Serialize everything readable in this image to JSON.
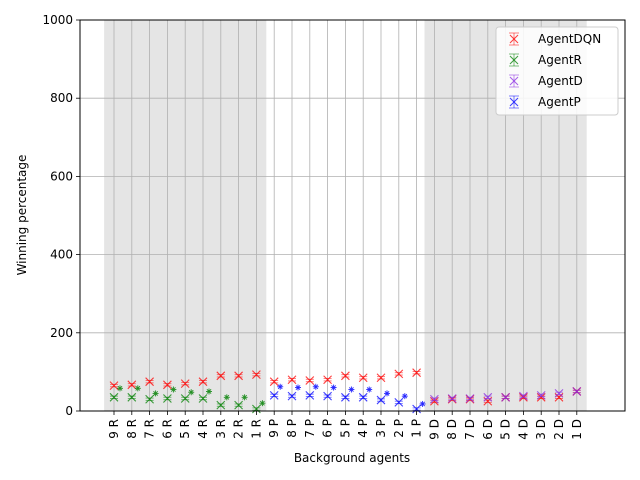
{
  "chart_data": {
    "type": "scatter",
    "xlabel": "Background agents",
    "ylabel": "Winning percentage",
    "ylim": [
      0,
      1000
    ],
    "yticks": [
      0,
      200,
      400,
      600,
      800,
      1000
    ],
    "grid": true,
    "legend_position": "top-right",
    "categories": [
      "9 R",
      "8 R",
      "7 R",
      "6 R",
      "5 R",
      "4 R",
      "3 R",
      "2 R",
      "1 R",
      "9 P",
      "8 P",
      "7 P",
      "6 P",
      "5 P",
      "4 P",
      "3 P",
      "2 P",
      "1 P",
      "9 D",
      "8 D",
      "7 D",
      "6 D",
      "5 D",
      "4 D",
      "3 D",
      "2 D",
      "1 D"
    ],
    "shaded_ranges": [
      {
        "from": "9 R",
        "to": "1 R"
      },
      {
        "from": "9 D",
        "to": "1 D"
      }
    ],
    "series": [
      {
        "name": "AgentDQN",
        "color": "#ff0000",
        "values": [
          65,
          67,
          75,
          67,
          70,
          75,
          90,
          90,
          93,
          75,
          80,
          78,
          80,
          90,
          85,
          85,
          95,
          98,
          25,
          30,
          30,
          25,
          35,
          35,
          35,
          35,
          50
        ],
        "error": [
          3,
          3,
          3,
          3,
          3,
          3,
          3,
          3,
          3,
          3,
          3,
          3,
          3,
          3,
          3,
          3,
          3,
          3,
          3,
          3,
          3,
          3,
          3,
          3,
          3,
          3,
          3
        ]
      },
      {
        "name": "AgentR",
        "color": "#008000",
        "values": [
          35,
          35,
          30,
          32,
          32,
          32,
          15,
          15,
          5,
          null,
          null,
          null,
          null,
          null,
          null,
          null,
          null,
          null,
          null,
          null,
          null,
          null,
          null,
          null,
          null,
          null,
          null
        ],
        "error": [
          3,
          3,
          3,
          3,
          3,
          3,
          3,
          3,
          3,
          null,
          null,
          null,
          null,
          null,
          null,
          null,
          null,
          null,
          null,
          null,
          null,
          null,
          null,
          null,
          null,
          null,
          null
        ],
        "secondary": [
          58,
          58,
          45,
          55,
          48,
          50,
          35,
          35,
          20,
          null,
          null,
          null,
          null,
          null,
          null,
          null,
          null,
          null,
          null,
          null,
          null,
          null,
          null,
          null,
          null,
          null,
          null
        ]
      },
      {
        "name": "AgentD",
        "color": "#8a2be2",
        "values": [
          null,
          null,
          null,
          null,
          null,
          null,
          null,
          null,
          null,
          null,
          null,
          null,
          null,
          null,
          null,
          null,
          null,
          null,
          30,
          32,
          32,
          35,
          35,
          38,
          40,
          45,
          50
        ],
        "error": [
          null,
          null,
          null,
          null,
          null,
          null,
          null,
          null,
          null,
          null,
          null,
          null,
          null,
          null,
          null,
          null,
          null,
          null,
          3,
          3,
          3,
          3,
          3,
          3,
          3,
          3,
          3
        ]
      },
      {
        "name": "AgentP",
        "color": "#0000ff",
        "values": [
          null,
          null,
          null,
          null,
          null,
          null,
          null,
          null,
          null,
          40,
          38,
          40,
          38,
          35,
          35,
          28,
          22,
          5,
          null,
          null,
          null,
          null,
          null,
          null,
          null,
          null,
          null
        ],
        "error": [
          null,
          null,
          null,
          null,
          null,
          null,
          null,
          null,
          null,
          3,
          3,
          3,
          3,
          3,
          3,
          3,
          3,
          3,
          null,
          null,
          null,
          null,
          null,
          null,
          null,
          null,
          null
        ],
        "secondary": [
          null,
          null,
          null,
          null,
          null,
          null,
          null,
          null,
          null,
          62,
          60,
          62,
          60,
          55,
          55,
          45,
          38,
          18,
          null,
          null,
          null,
          null,
          null,
          null,
          null,
          null,
          null
        ]
      }
    ]
  }
}
